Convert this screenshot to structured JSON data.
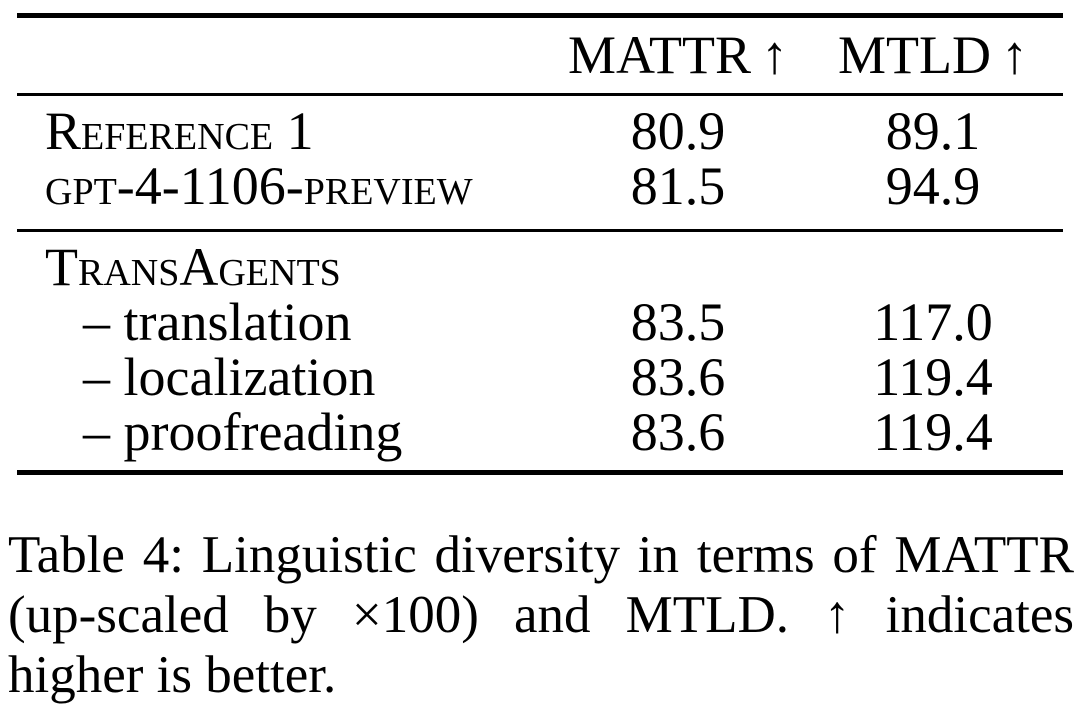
{
  "table": {
    "columns": [
      {
        "label": "MATTR",
        "arrow": "↑"
      },
      {
        "label": "MTLD",
        "arrow": "↑"
      }
    ],
    "groups": [
      {
        "rows": [
          {
            "label": "Reference 1",
            "mattr": "80.9",
            "mtld": "89.1"
          },
          {
            "label": "gpt-4-1106-preview",
            "mattr": "81.5",
            "mtld": "94.9"
          }
        ]
      },
      {
        "header": "TransAgents",
        "rows": [
          {
            "label": "– translation",
            "mattr": "83.5",
            "mtld": "117.0"
          },
          {
            "label": "– localization",
            "mattr": "83.6",
            "mtld": "119.4"
          },
          {
            "label": "– proofreading",
            "mattr": "83.6",
            "mtld": "119.4"
          }
        ]
      }
    ]
  },
  "caption": {
    "lines": [
      "Table 4: Linguistic diversity in terms of MATTR",
      "(up-scaled by ×100) and MTLD. ↑ indicates",
      "higher is better."
    ]
  },
  "colors": {
    "text": "#000000",
    "background": "#ffffff",
    "rule": "#000000"
  }
}
